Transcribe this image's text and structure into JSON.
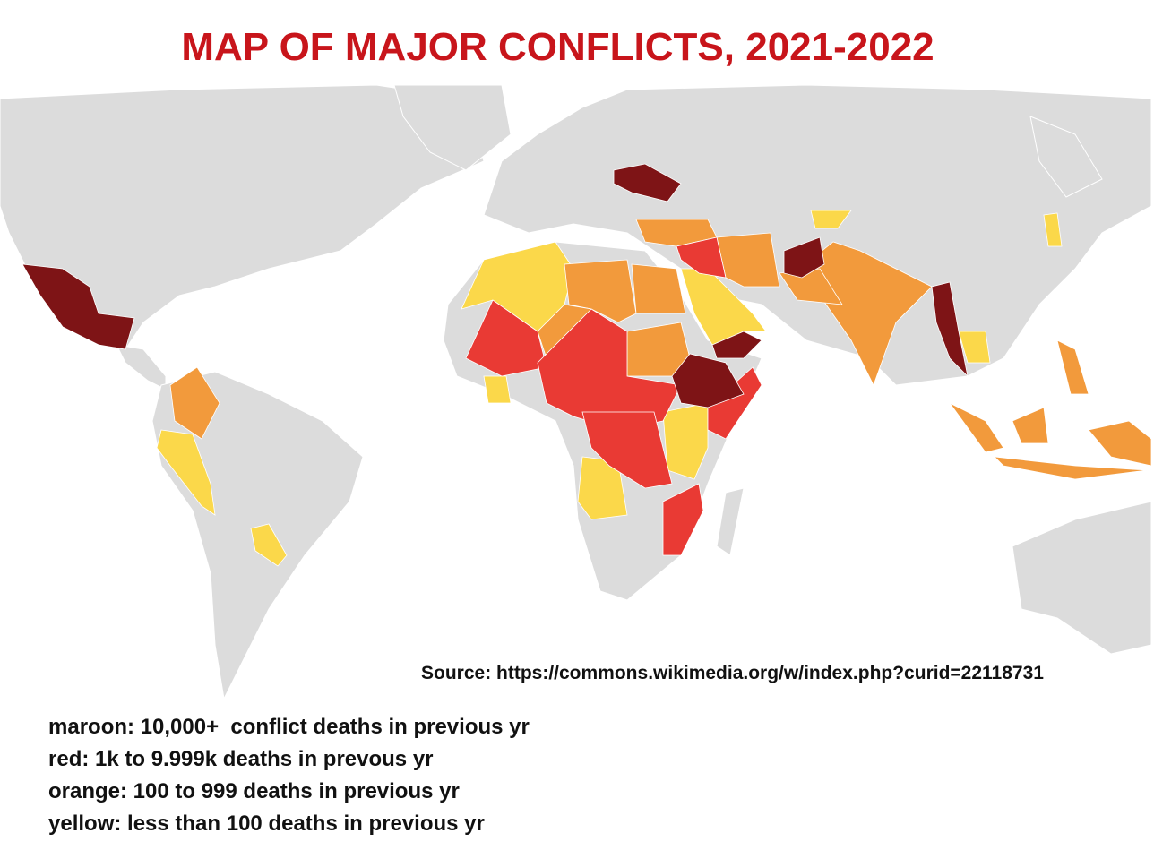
{
  "title": "MAP OF MAJOR CONFLICTS, 2021-2022",
  "source": "Source: https://commons.wikimedia.org/w/index.php?curid=22118731",
  "legend": [
    "maroon: 10,000+  conflict deaths in previous yr",
    "red: 1k to 9.999k deaths in prevous yr",
    "orange: 100 to 999 deaths in previous yr",
    "yellow: less than 100 deaths in previous yr"
  ]
}
